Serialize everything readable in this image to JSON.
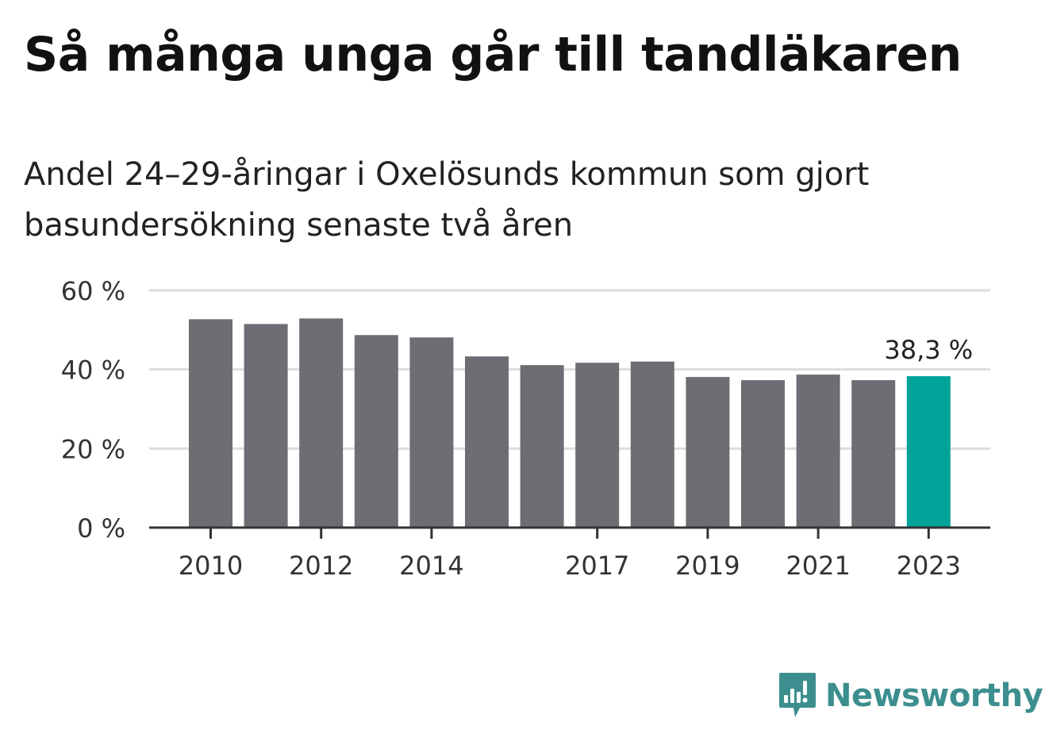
{
  "title": "Så många unga går till tandläkaren",
  "subtitle": "Andel 24–29-åringar i Oxelösunds kommun som gjort basundersökning senaste två åren",
  "brand": {
    "name": "Newsworthy",
    "icon": "newsworthy-logo-icon",
    "color": "#3d8e8e"
  },
  "colors": {
    "bar": "#6e6d73",
    "highlight": "#00a398",
    "grid": "#dddddd",
    "axis": "#333333"
  },
  "chart_data": {
    "type": "bar",
    "title": "Så många unga går till tandläkaren",
    "subtitle": "Andel 24–29-åringar i Oxelösunds kommun som gjort basundersökning senaste två åren",
    "xlabel": "",
    "ylabel": "",
    "categories": [
      "2010",
      "2011",
      "2012",
      "2013",
      "2014",
      "2015",
      "2016",
      "2017",
      "2018",
      "2019",
      "2020",
      "2021",
      "2022",
      "2023"
    ],
    "x_tick_labels": [
      "2010",
      "2012",
      "2014",
      "2017",
      "2019",
      "2021",
      "2023"
    ],
    "values": [
      52.7,
      51.5,
      52.9,
      48.7,
      48.1,
      43.3,
      41.1,
      41.7,
      42.0,
      38.1,
      37.3,
      38.7,
      37.3,
      38.3
    ],
    "ylim": [
      0,
      60
    ],
    "y_ticks": [
      0,
      20,
      40,
      60
    ],
    "y_tick_labels": [
      "0 %",
      "20 %",
      "40 %",
      "60 %"
    ],
    "highlight": {
      "category": "2023",
      "label": "38,3 %"
    },
    "grid": true,
    "legend": "none"
  }
}
